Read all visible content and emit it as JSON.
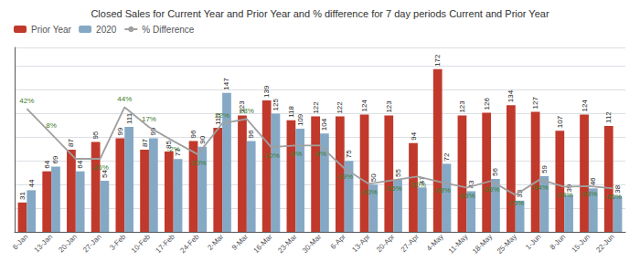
{
  "chart_data": {
    "type": "bar",
    "title": "Closed Sales for Current Year and Prior Year and % difference for 7 day periods Current and Prior Year",
    "categories": [
      "6-Jan",
      "13-Jan",
      "20-Jan",
      "27-Jan",
      "3-Feb",
      "10-Feb",
      "17-Feb",
      "24-Feb",
      "2-Mar",
      "9-Mar",
      "16-Mar",
      "23-Mar",
      "30-Mar",
      "6-Apr",
      "13-Apr",
      "20-Apr",
      "27-Apr",
      "4-May",
      "11-May",
      "18-May",
      "25-May",
      "1-Jun",
      "8-Jun",
      "15-Jun",
      "22-Jun"
    ],
    "series": [
      {
        "name": "Prior Year",
        "type": "bar",
        "color": "#C0392B",
        "values": [
          31,
          64,
          87,
          95,
          99,
          87,
          85,
          96,
          110,
          123,
          139,
          118,
          122,
          122,
          124,
          123,
          94,
          172,
          123,
          126,
          134,
          127,
          107,
          124,
          112
        ]
      },
      {
        "name": "2020",
        "type": "bar",
        "color": "#85A9C5",
        "values": [
          44,
          69,
          64,
          54,
          111,
          99,
          77,
          90,
          147,
          96,
          125,
          109,
          104,
          75,
          50,
          55,
          47,
          72,
          43,
          56,
          33,
          59,
          39,
          46,
          38
        ]
      },
      {
        "name": "% Difference",
        "type": "line",
        "axis": "y2",
        "color": "#A0A0A0",
        "values": [
          42,
          8,
          -26,
          -26,
          44,
          17,
          -2,
          -20,
          22,
          28,
          -10,
          -8,
          -8,
          -39,
          -60,
          -55,
          -50,
          -58,
          -65,
          -56,
          -75,
          -54,
          -64,
          -63,
          -66
        ],
        "value_labels": [
          "42%",
          "8%",
          null,
          "-26%",
          "44%",
          "17%",
          "-2%",
          "-20%",
          "22%",
          "28%",
          "-10%",
          "-8%",
          "-8%",
          "-39%",
          "-60%",
          "-55%",
          "-50%",
          "-58%",
          "-65%",
          "-56%",
          "-75%",
          "-54%",
          "-64%",
          "-63%",
          "-66%"
        ]
      }
    ],
    "ylim": [
      0,
      195
    ],
    "yticks": [
      0,
      25,
      50,
      75,
      100,
      125,
      150,
      175
    ],
    "y2lim": [
      -125,
      125
    ],
    "grid": true,
    "legend": "upper left",
    "data_labels": true,
    "tick_labels": "x"
  }
}
